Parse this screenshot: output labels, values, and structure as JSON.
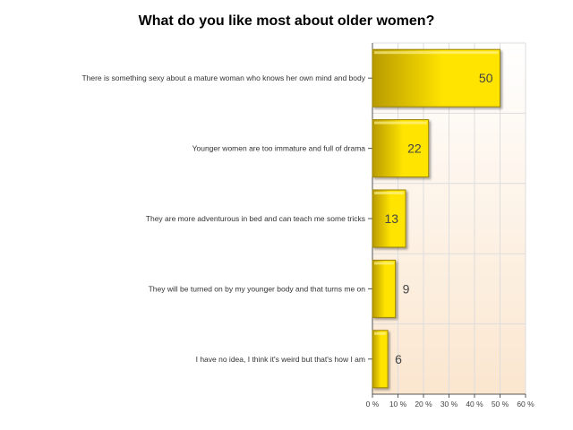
{
  "chart_data": {
    "type": "bar",
    "orientation": "horizontal",
    "title": "What do you like most about older women?",
    "categories": [
      "There is something sexy about a mature woman who knows her own mind and body",
      "Younger women are too immature and full of drama",
      "They are more adventurous in bed and can teach me some tricks",
      "They will be turned on by my younger body and that turns me on",
      "I have no idea, I think it's weird but that's how I am"
    ],
    "values": [
      50,
      22,
      13,
      9,
      6
    ],
    "value_unit": "%",
    "xlim": [
      0,
      60
    ],
    "x_ticks": [
      0,
      10,
      20,
      30,
      40,
      50,
      60
    ],
    "x_tick_labels": [
      "0 %",
      "10 %",
      "20 %",
      "30 %",
      "40 %",
      "50 %",
      "60 %"
    ],
    "xlabel": "",
    "ylabel": "",
    "grid": true,
    "colors": {
      "bar_light": "#ffe400",
      "bar_dark": "#b89a00",
      "bar_border": "#9a8200",
      "plot_bg_top": "#ffffff",
      "plot_bg_bottom": "#fbe6cf",
      "grid": "#dddddd"
    }
  }
}
